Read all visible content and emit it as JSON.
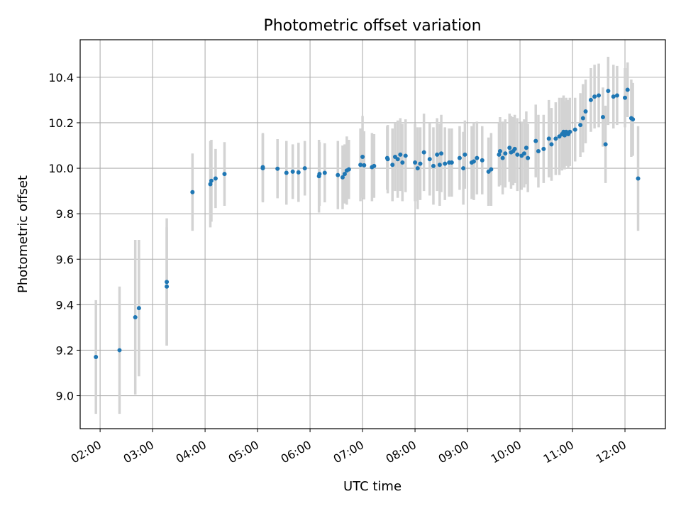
{
  "chart_data": {
    "type": "scatter",
    "title": "Photometric offset variation",
    "xlabel": "UTC time",
    "ylabel": "Photometric offset",
    "xlim": [
      1.62,
      12.77
    ],
    "ylim": [
      8.855,
      10.565
    ],
    "grid": true,
    "legend": "none",
    "x_ticks": [
      2,
      3,
      4,
      5,
      6,
      7,
      8,
      9,
      10,
      11,
      12
    ],
    "x_tick_labels": [
      "02:00",
      "03:00",
      "04:00",
      "05:00",
      "06:00",
      "07:00",
      "08:00",
      "09:00",
      "10:00",
      "11:00",
      "12:00"
    ],
    "y_ticks": [
      9.0,
      9.2,
      9.4,
      9.6,
      9.8,
      10.0,
      10.2,
      10.4
    ],
    "y_tick_labels": [
      "9.0",
      "9.2",
      "9.4",
      "9.6",
      "9.8",
      "10.0",
      "10.2",
      "10.4"
    ],
    "colors": {
      "points": "#1f77b4",
      "error_bars": "#d3d3d3",
      "grid": "#b0b0b0"
    },
    "series": [
      {
        "name": "Photometric offset",
        "x": [
          1.92,
          2.37,
          2.67,
          2.74,
          3.27,
          3.27,
          3.76,
          4.1,
          4.12,
          4.2,
          4.37,
          5.1,
          5.1,
          5.38,
          5.55,
          5.67,
          5.78,
          5.9,
          6.17,
          6.18,
          6.28,
          6.53,
          6.62,
          6.66,
          6.7,
          6.74,
          6.96,
          7.0,
          7.03,
          7.18,
          7.22,
          7.47,
          7.48,
          7.57,
          7.62,
          7.67,
          7.72,
          7.76,
          7.82,
          8.0,
          8.05,
          8.1,
          8.17,
          8.28,
          8.35,
          8.42,
          8.47,
          8.5,
          8.57,
          8.65,
          8.7,
          8.85,
          8.92,
          8.95,
          9.08,
          9.12,
          9.18,
          9.28,
          9.4,
          9.45,
          9.6,
          9.62,
          9.67,
          9.72,
          9.8,
          9.83,
          9.87,
          9.9,
          9.95,
          10.03,
          10.08,
          10.12,
          10.15,
          10.3,
          10.35,
          10.45,
          10.55,
          10.6,
          10.68,
          10.75,
          10.8,
          10.83,
          10.85,
          10.88,
          10.92,
          10.95,
          11.05,
          11.15,
          11.2,
          11.25,
          11.35,
          11.42,
          11.5,
          11.58,
          11.63,
          11.68,
          11.78,
          11.85,
          12.0,
          12.05,
          12.12,
          12.15,
          12.25
        ],
        "y": [
          9.17,
          9.2,
          9.345,
          9.385,
          9.48,
          9.5,
          9.895,
          9.93,
          9.945,
          9.955,
          9.975,
          10.0,
          10.005,
          9.998,
          9.98,
          9.985,
          9.982,
          10.0,
          9.965,
          9.975,
          9.98,
          9.97,
          9.96,
          9.975,
          9.99,
          9.995,
          10.015,
          10.05,
          10.013,
          10.005,
          10.01,
          10.045,
          10.04,
          10.015,
          10.05,
          10.04,
          10.06,
          10.025,
          10.055,
          10.025,
          10.0,
          10.02,
          10.07,
          10.04,
          10.01,
          10.06,
          10.015,
          10.065,
          10.02,
          10.025,
          10.025,
          10.045,
          10.0,
          10.06,
          10.025,
          10.03,
          10.045,
          10.035,
          9.985,
          9.995,
          10.06,
          10.075,
          10.045,
          10.065,
          10.09,
          10.07,
          10.075,
          10.085,
          10.06,
          10.055,
          10.065,
          10.09,
          10.045,
          10.12,
          10.075,
          10.085,
          10.13,
          10.105,
          10.13,
          10.14,
          10.15,
          10.16,
          10.145,
          10.16,
          10.15,
          10.16,
          10.17,
          10.19,
          10.22,
          10.25,
          10.3,
          10.315,
          10.32,
          10.225,
          10.105,
          10.34,
          10.315,
          10.32,
          10.31,
          10.345,
          10.22,
          10.215,
          9.955
        ],
        "err": [
          0.25,
          0.28,
          0.34,
          0.3,
          0.26,
          0.28,
          0.17,
          0.19,
          0.18,
          0.13,
          0.14,
          0.15,
          0.15,
          0.13,
          0.14,
          0.12,
          0.13,
          0.12,
          0.16,
          0.14,
          0.13,
          0.15,
          0.14,
          0.13,
          0.15,
          0.13,
          0.16,
          0.18,
          0.15,
          0.15,
          0.14,
          0.14,
          0.15,
          0.16,
          0.15,
          0.17,
          0.16,
          0.17,
          0.16,
          0.17,
          0.18,
          0.16,
          0.17,
          0.16,
          0.17,
          0.16,
          0.18,
          0.17,
          0.16,
          0.15,
          0.15,
          0.14,
          0.16,
          0.15,
          0.16,
          0.17,
          0.16,
          0.15,
          0.15,
          0.16,
          0.14,
          0.15,
          0.16,
          0.15,
          0.15,
          0.16,
          0.15,
          0.15,
          0.16,
          0.15,
          0.15,
          0.16,
          0.15,
          0.16,
          0.16,
          0.15,
          0.17,
          0.16,
          0.16,
          0.17,
          0.16,
          0.16,
          0.15,
          0.15,
          0.15,
          0.15,
          0.14,
          0.14,
          0.15,
          0.14,
          0.14,
          0.14,
          0.14,
          0.13,
          0.17,
          0.15,
          0.14,
          0.13,
          0.13,
          0.12,
          0.17,
          0.16,
          0.23
        ]
      }
    ]
  }
}
